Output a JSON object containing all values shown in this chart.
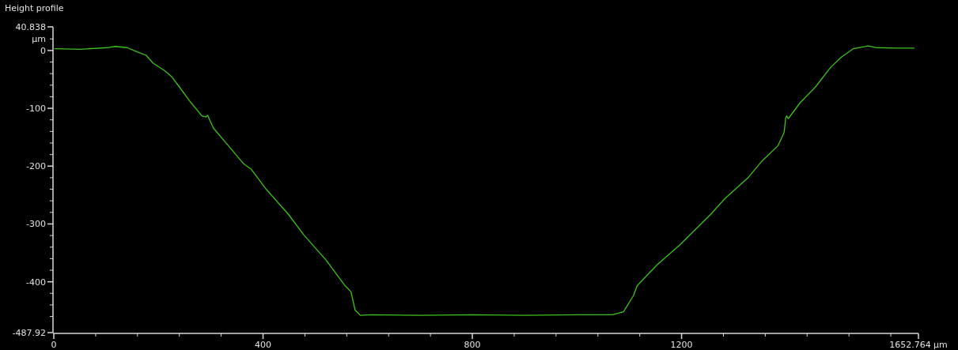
{
  "chart_data": {
    "type": "line",
    "title": "Height profile",
    "ylabel": "μm",
    "xlim": [
      0,
      1652.764
    ],
    "ylim": [
      -487.92,
      40.838
    ],
    "xticks": [
      0,
      {
        "value": 80,
        "label": null
      },
      {
        "value": 160,
        "label": null
      },
      {
        "value": 240,
        "label": null
      },
      {
        "value": 320,
        "label": null
      },
      400,
      {
        "value": 480,
        "label": null
      },
      {
        "value": 560,
        "label": null
      },
      {
        "value": 640,
        "label": null
      },
      {
        "value": 720,
        "label": null
      },
      800,
      {
        "value": 880,
        "label": null
      },
      {
        "value": 960,
        "label": null
      },
      {
        "value": 1040,
        "label": null
      },
      {
        "value": 1120,
        "label": null
      },
      1200,
      {
        "value": 1280,
        "label": null
      },
      {
        "value": 1360,
        "label": null
      },
      {
        "value": 1440,
        "label": null
      },
      {
        "value": 1520,
        "label": null
      },
      {
        "value": 1600,
        "label": null
      },
      {
        "value": 1652.764,
        "label": "1652.764 μm"
      }
    ],
    "yticks": [
      40.838,
      {
        "value": 20,
        "label": null
      },
      0,
      {
        "value": -20,
        "label": null
      },
      {
        "value": -40,
        "label": null
      },
      {
        "value": -60,
        "label": null
      },
      {
        "value": -80,
        "label": null
      },
      -100,
      {
        "value": -120,
        "label": null
      },
      {
        "value": -140,
        "label": null
      },
      {
        "value": -160,
        "label": null
      },
      {
        "value": -180,
        "label": null
      },
      -200,
      {
        "value": -220,
        "label": null
      },
      {
        "value": -240,
        "label": null
      },
      {
        "value": -260,
        "label": null
      },
      {
        "value": -280,
        "label": null
      },
      -300,
      {
        "value": -320,
        "label": null
      },
      {
        "value": -340,
        "label": null
      },
      {
        "value": -360,
        "label": null
      },
      {
        "value": -380,
        "label": null
      },
      -400,
      {
        "value": -420,
        "label": null
      },
      {
        "value": -440,
        "label": null
      },
      {
        "value": -460,
        "label": null
      },
      -487.92
    ],
    "grid": false,
    "line_style": "solid",
    "series": [
      {
        "color": "#3cc31a",
        "x": [
          1,
          50,
          104,
          118,
          140,
          161,
          176,
          190,
          212,
          226,
          240,
          262,
          283,
          291,
          294,
          305,
          334,
          363,
          377,
          406,
          449,
          478,
          521,
          557,
          568,
          576,
          586,
          607,
          700,
          800,
          900,
          1000,
          1068,
          1089,
          1108,
          1115,
          1140,
          1154,
          1197,
          1255,
          1283,
          1327,
          1355,
          1384,
          1396,
          1399,
          1401,
          1404,
          1427,
          1456,
          1485,
          1506,
          1528,
          1557,
          1571,
          1610,
          1645
        ],
        "values": [
          3,
          2,
          5,
          7,
          5,
          -3,
          -8,
          -22,
          -35,
          -46,
          -63,
          -90,
          -113,
          -115,
          -112,
          -134,
          -165,
          -196,
          -205,
          -240,
          -284,
          -319,
          -363,
          -407,
          -417,
          -449,
          -458,
          -457,
          -458,
          -457,
          -458,
          -457,
          -457,
          -452,
          -424,
          -407,
          -383,
          -370,
          -336,
          -284,
          -256,
          -220,
          -190,
          -165,
          -142,
          -117,
          -113,
          -118,
          -90,
          -63,
          -29,
          -11,
          3,
          8,
          5,
          4,
          4
        ]
      }
    ]
  }
}
